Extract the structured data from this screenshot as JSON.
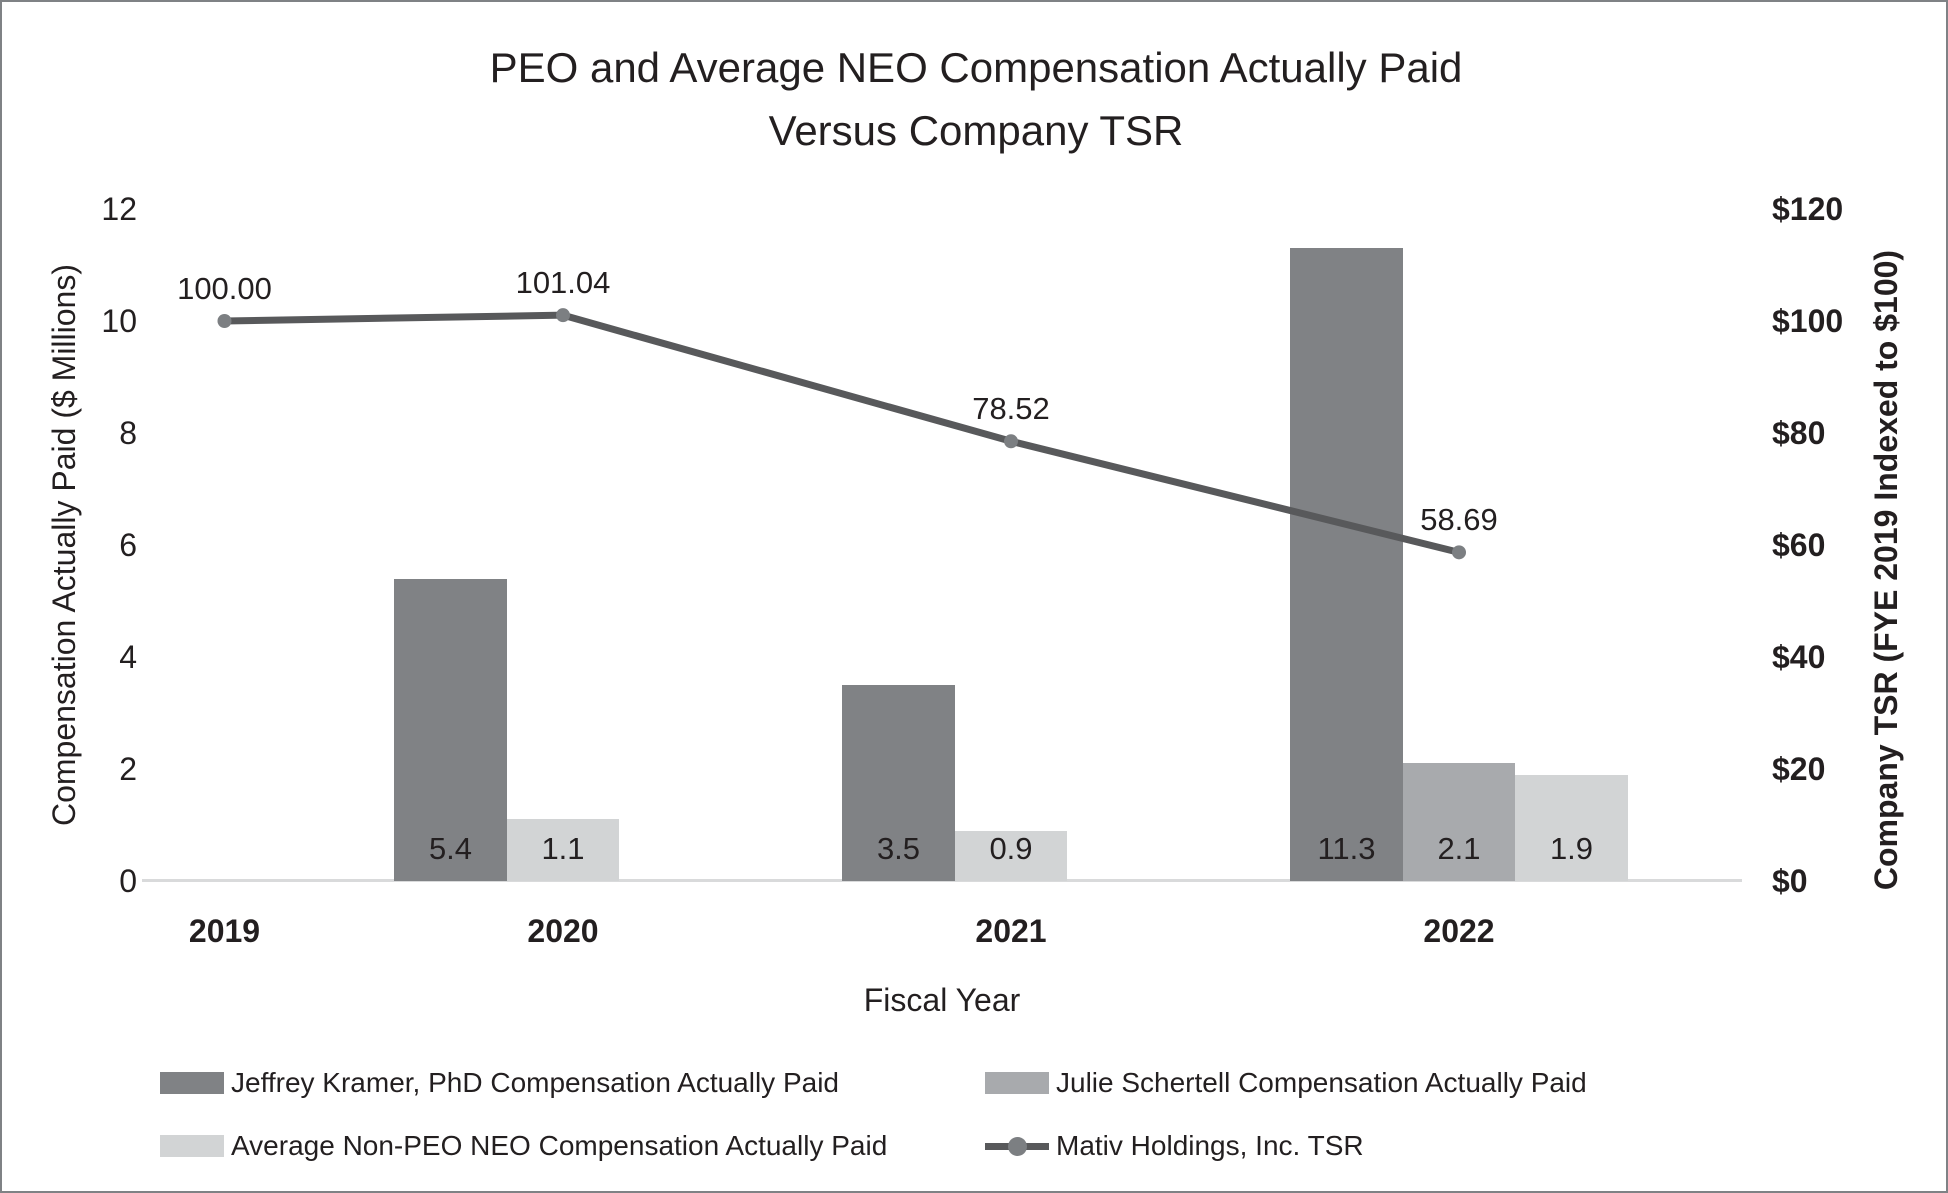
{
  "title": {
    "line1": "PEO and Average NEO Compensation Actually Paid",
    "line2": "Versus Company TSR"
  },
  "axes": {
    "left": {
      "title": "Compensation Actually Paid ($ Millions)",
      "tick_labels": [
        "0",
        "2",
        "4",
        "6",
        "8",
        "10",
        "12"
      ],
      "tick_values": [
        0,
        2,
        4,
        6,
        8,
        10,
        12
      ]
    },
    "right": {
      "title": "Company TSR (FYE 2019 Indexed to $100)",
      "tick_labels": [
        "$0",
        "$20",
        "$40",
        "$60",
        "$80",
        "$100",
        "$120"
      ],
      "tick_values": [
        0,
        20,
        40,
        60,
        80,
        100,
        120
      ]
    },
    "x": {
      "title": "Fiscal Year",
      "categories": [
        "2019",
        "2020",
        "2021",
        "2022"
      ]
    }
  },
  "chart_data": {
    "type": "combo_bar_line",
    "categories": [
      "2019",
      "2020",
      "2021",
      "2022"
    ],
    "left_ylim": [
      0,
      12
    ],
    "right_ylim": [
      0,
      120
    ],
    "grid": false,
    "legend_position": "bottom",
    "series": [
      {
        "name": "Jeffrey Kramer, PhD Compensation Actually Paid",
        "type": "bar",
        "axis": "left",
        "color": "#808285",
        "values": [
          null,
          5.4,
          3.5,
          11.3
        ],
        "labels": [
          null,
          "5.4",
          "3.5",
          "11.3"
        ]
      },
      {
        "name": "Julie Schertell Compensation Actually Paid",
        "type": "bar",
        "axis": "left",
        "color": "#a8aaad",
        "values": [
          null,
          null,
          null,
          2.1
        ],
        "labels": [
          null,
          null,
          null,
          "2.1"
        ]
      },
      {
        "name": "Average Non-PEO NEO Compensation Actually Paid",
        "type": "bar",
        "axis": "left",
        "color": "#d2d4d5",
        "values": [
          null,
          1.1,
          0.9,
          1.9
        ],
        "labels": [
          null,
          "1.1",
          "0.9",
          "1.9"
        ]
      },
      {
        "name": "Mativ Holdings, Inc. TSR",
        "type": "line",
        "axis": "right",
        "color": "#58595b",
        "marker_color": "#7c7f82",
        "values": [
          100.0,
          101.04,
          78.52,
          58.69
        ],
        "labels": [
          "100.00",
          "101.04",
          "78.52",
          "58.69"
        ]
      }
    ]
  },
  "legend": {
    "items": [
      {
        "label": "Jeffrey Kramer, PhD Compensation Actually Paid",
        "type": "swatch",
        "color": "#808285"
      },
      {
        "label": "Julie Schertell Compensation Actually Paid",
        "type": "swatch",
        "color": "#a8aaad"
      },
      {
        "label": "Average Non-PEO NEO Compensation Actually Paid",
        "type": "swatch",
        "color": "#d2d4d5"
      },
      {
        "label": "Mativ Holdings, Inc. TSR",
        "type": "line",
        "color": "#58595b"
      }
    ]
  }
}
